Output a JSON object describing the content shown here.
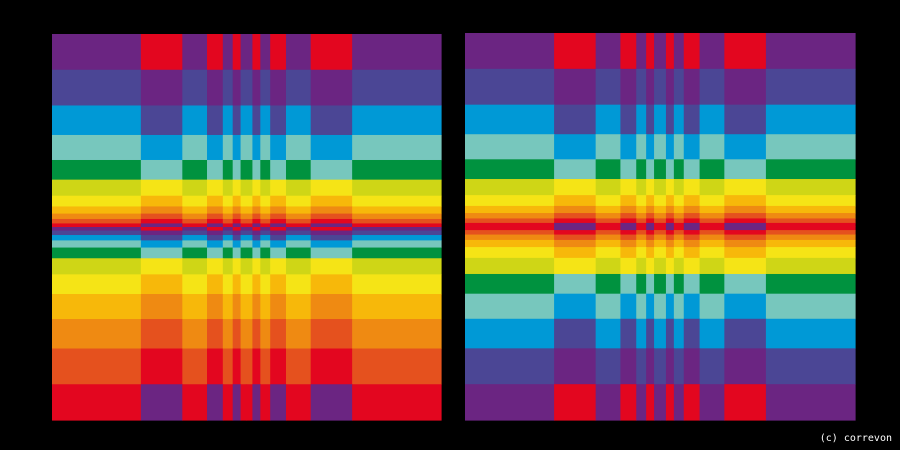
{
  "credit": "(c) correvon"
}
